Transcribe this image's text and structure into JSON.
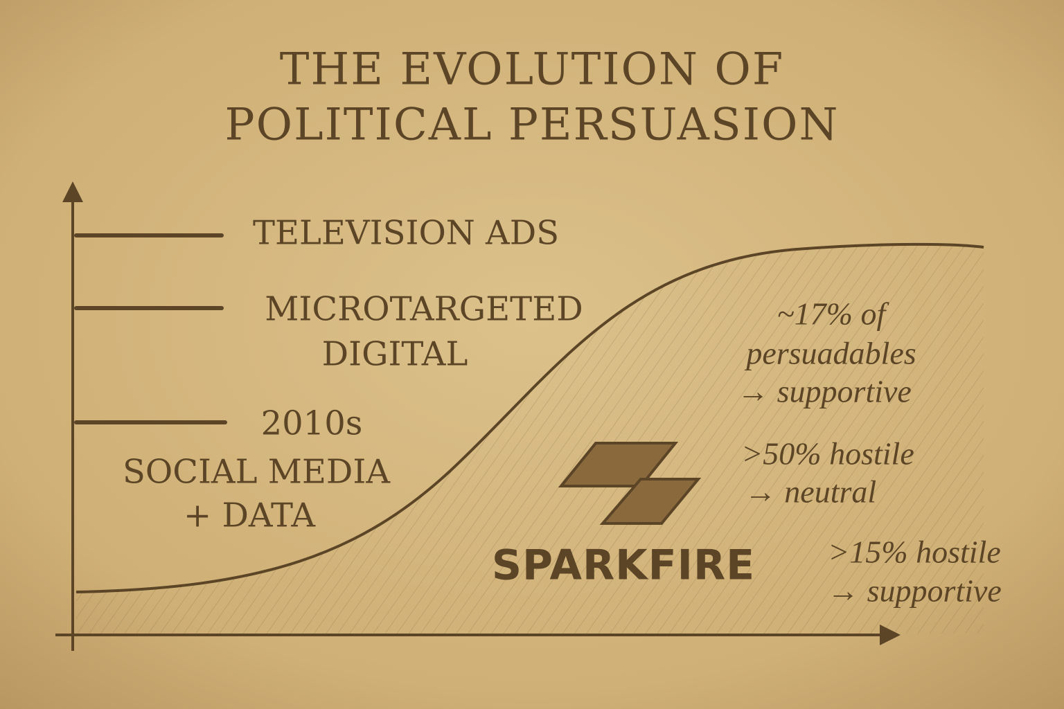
{
  "title": {
    "lines": [
      "THE EVOLUTION OF",
      "POLITICAL PERSUASION"
    ]
  },
  "labels": [
    {
      "lines": [
        "TELEVISION ADS"
      ]
    },
    {
      "lines": [
        "MICROTARGETED",
        "DIGITAL"
      ]
    },
    {
      "lines": [
        "2010s",
        "SOCIAL MEDIA",
        "+ DATA"
      ]
    }
  ],
  "annotations": [
    {
      "lines": [
        "~17% of",
        "persuadables",
        "→ supportive"
      ]
    },
    {
      "lines": [
        ">50% hostile",
        "→ neutral"
      ]
    },
    {
      "lines": [
        ">15% hostile",
        "→ supportive"
      ]
    }
  ],
  "brand": "SPARKFIRE"
}
